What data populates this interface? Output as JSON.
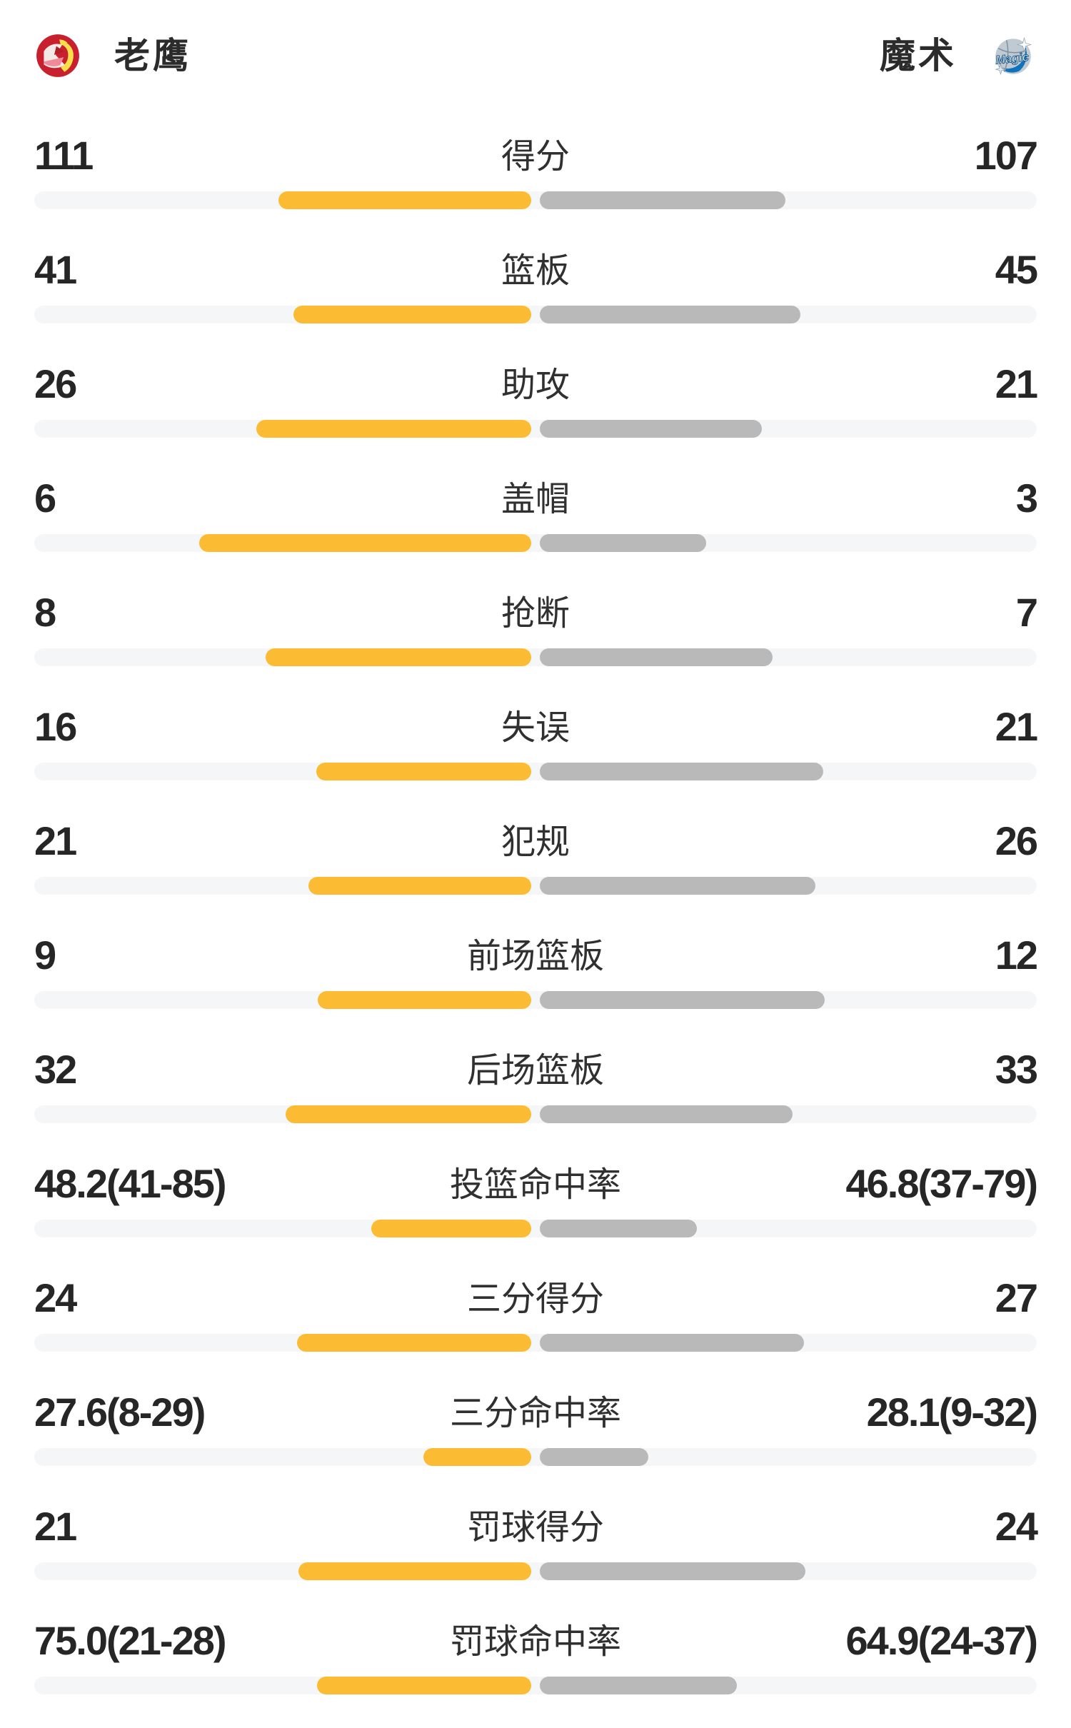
{
  "header": {
    "home": {
      "name": "老鹰",
      "logo_icon": "hawks-logo"
    },
    "away": {
      "name": "魔术",
      "logo_icon": "magic-logo"
    }
  },
  "colors": {
    "home-bar": "#FBBC34",
    "away-bar": "#B9B9B9",
    "track": "#F5F6F8",
    "hawks-red": "#C8202E",
    "magic-blue": "#1072BA"
  },
  "chart_data": {
    "type": "bar",
    "orientation": "horizontal-mirrored",
    "legend_position": "top",
    "series": [
      "老鹰",
      "魔术"
    ],
    "rows": [
      {
        "label": "得分",
        "home": "111",
        "away": "107",
        "home_num": 111,
        "away_num": 107,
        "home_bar_pct": 50.9,
        "away_bar_pct": 49.4
      },
      {
        "label": "篮板",
        "home": "41",
        "away": "45",
        "home_num": 41,
        "away_num": 45,
        "home_bar_pct": 47.8,
        "away_bar_pct": 52.4
      },
      {
        "label": "助攻",
        "home": "26",
        "away": "21",
        "home_num": 26,
        "away_num": 21,
        "home_bar_pct": 55.3,
        "away_bar_pct": 44.7
      },
      {
        "label": "盖帽",
        "home": "6",
        "away": "3",
        "home_num": 6,
        "away_num": 3,
        "home_bar_pct": 66.8,
        "away_bar_pct": 33.5
      },
      {
        "label": "抢断",
        "home": "8",
        "away": "7",
        "home_num": 8,
        "away_num": 7,
        "home_bar_pct": 53.4,
        "away_bar_pct": 46.8
      },
      {
        "label": "失误",
        "home": "16",
        "away": "21",
        "home_num": 16,
        "away_num": 21,
        "home_bar_pct": 43.2,
        "away_bar_pct": 57.0
      },
      {
        "label": "犯规",
        "home": "21",
        "away": "26",
        "home_num": 21,
        "away_num": 26,
        "home_bar_pct": 44.8,
        "away_bar_pct": 55.5
      },
      {
        "label": "前场篮板",
        "home": "9",
        "away": "12",
        "home_num": 9,
        "away_num": 12,
        "home_bar_pct": 43.0,
        "away_bar_pct": 57.3
      },
      {
        "label": "后场篮板",
        "home": "32",
        "away": "33",
        "home_num": 32,
        "away_num": 33,
        "home_bar_pct": 49.4,
        "away_bar_pct": 50.9
      },
      {
        "label": "投篮命中率",
        "home": "48.2(41-85)",
        "away": "46.8(37-79)",
        "home_num": 48.2,
        "away_num": 46.8,
        "home_bar_pct": 32.2,
        "away_bar_pct": 31.6
      },
      {
        "label": "三分得分",
        "home": "24",
        "away": "27",
        "home_num": 24,
        "away_num": 27,
        "home_bar_pct": 47.1,
        "away_bar_pct": 53.2
      },
      {
        "label": "三分命中率",
        "home": "27.6(8-29)",
        "away": "28.1(9-32)",
        "home_num": 27.6,
        "away_num": 28.1,
        "home_bar_pct": 21.7,
        "away_bar_pct": 21.8
      },
      {
        "label": "罚球得分",
        "home": "21",
        "away": "24",
        "home_num": 21,
        "away_num": 24,
        "home_bar_pct": 46.8,
        "away_bar_pct": 53.4
      },
      {
        "label": "罚球命中率",
        "home": "75.0(21-28)",
        "away": "64.9(24-37)",
        "home_num": 75.0,
        "away_num": 64.9,
        "home_bar_pct": 43.1,
        "away_bar_pct": 39.7
      }
    ]
  }
}
